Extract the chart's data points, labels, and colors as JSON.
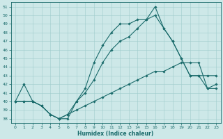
{
  "xlabel": "Humidex (Indice chaleur)",
  "xlim": [
    -0.5,
    23.5
  ],
  "ylim": [
    37.5,
    51.5
  ],
  "yticks": [
    38,
    39,
    40,
    41,
    42,
    43,
    44,
    45,
    46,
    47,
    48,
    49,
    50,
    51
  ],
  "xticks": [
    0,
    1,
    2,
    3,
    4,
    5,
    6,
    7,
    8,
    9,
    10,
    11,
    12,
    13,
    14,
    15,
    16,
    17,
    18,
    19,
    20,
    21,
    22,
    23
  ],
  "bg_color": "#cde8e8",
  "grid_color": "#a0cccc",
  "line_color": "#1a6b6b",
  "line1_x": [
    0,
    1,
    2,
    3,
    4,
    5,
    6,
    7,
    8,
    9,
    10,
    11,
    12,
    13,
    14,
    15,
    16,
    17,
    18,
    19,
    20,
    21,
    22,
    23
  ],
  "line1_y": [
    40.0,
    42.0,
    40.0,
    39.5,
    38.5,
    38.0,
    38.0,
    40.0,
    41.5,
    44.5,
    46.5,
    48.0,
    49.0,
    49.0,
    49.5,
    49.5,
    51.0,
    48.5,
    47.0,
    45.0,
    43.0,
    43.0,
    41.5,
    42.0
  ],
  "line2_x": [
    0,
    1,
    2,
    3,
    4,
    5,
    6,
    7,
    8,
    9,
    10,
    11,
    12,
    13,
    14,
    15,
    16,
    17,
    18,
    19,
    20,
    21,
    22,
    23
  ],
  "line2_y": [
    40.0,
    40.0,
    40.0,
    39.5,
    38.5,
    38.0,
    38.5,
    40.0,
    41.0,
    42.5,
    44.5,
    46.0,
    47.0,
    47.5,
    48.5,
    49.5,
    50.0,
    48.5,
    47.0,
    45.0,
    43.0,
    43.0,
    43.0,
    43.0
  ],
  "line3_x": [
    0,
    1,
    2,
    3,
    4,
    5,
    6,
    7,
    8,
    9,
    10,
    11,
    12,
    13,
    14,
    15,
    16,
    17,
    18,
    19,
    20,
    21,
    22,
    23
  ],
  "line3_y": [
    40.0,
    40.0,
    40.0,
    39.5,
    38.5,
    38.0,
    38.5,
    39.0,
    39.5,
    40.0,
    40.5,
    41.0,
    41.5,
    42.0,
    42.5,
    43.0,
    43.5,
    43.5,
    44.0,
    44.5,
    44.5,
    44.5,
    41.5,
    41.5
  ]
}
